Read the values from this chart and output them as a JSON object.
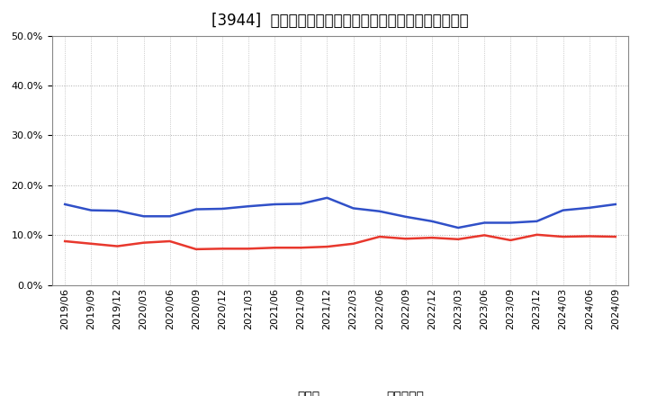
{
  "title": "[3944]  現須金、有利子負債の総資産に対する比率の推移",
  "dates": [
    "2019/06",
    "2019/09",
    "2019/12",
    "2020/03",
    "2020/06",
    "2020/09",
    "2020/12",
    "2021/03",
    "2021/06",
    "2021/09",
    "2021/12",
    "2022/03",
    "2022/06",
    "2022/09",
    "2022/12",
    "2023/03",
    "2023/06",
    "2023/09",
    "2023/12",
    "2024/03",
    "2024/06",
    "2024/09"
  ],
  "genyo_cash": [
    0.088,
    0.083,
    0.078,
    0.085,
    0.088,
    0.072,
    0.073,
    0.073,
    0.075,
    0.075,
    0.077,
    0.083,
    0.097,
    0.093,
    0.095,
    0.092,
    0.1,
    0.09,
    0.101,
    0.097,
    0.098,
    0.097
  ],
  "interest_debt": [
    0.162,
    0.15,
    0.149,
    0.138,
    0.138,
    0.152,
    0.153,
    0.158,
    0.162,
    0.163,
    0.175,
    0.154,
    0.148,
    0.137,
    0.128,
    0.115,
    0.125,
    0.125,
    0.128,
    0.15,
    0.155,
    0.162
  ],
  "cash_color": "#e8382d",
  "debt_color": "#3050c8",
  "background_color": "#ffffff",
  "grid_color": "#aaaaaa",
  "ylim": [
    0.0,
    0.5
  ],
  "yticks": [
    0.0,
    0.1,
    0.2,
    0.3,
    0.4,
    0.5
  ],
  "legend_cash": "現須金",
  "legend_debt": "有利子負債",
  "title_fontsize": 12,
  "axis_fontsize": 8,
  "legend_fontsize": 10
}
